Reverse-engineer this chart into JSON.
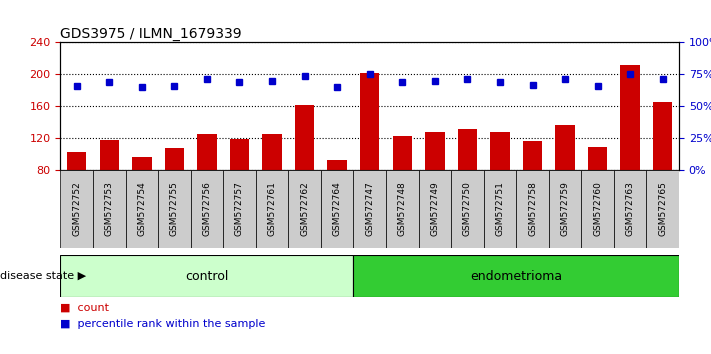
{
  "title": "GDS3975 / ILMN_1679339",
  "samples": [
    "GSM572752",
    "GSM572753",
    "GSM572754",
    "GSM572755",
    "GSM572756",
    "GSM572757",
    "GSM572761",
    "GSM572762",
    "GSM572764",
    "GSM572747",
    "GSM572748",
    "GSM572749",
    "GSM572750",
    "GSM572751",
    "GSM572758",
    "GSM572759",
    "GSM572760",
    "GSM572763",
    "GSM572765"
  ],
  "counts": [
    103,
    118,
    96,
    107,
    125,
    119,
    125,
    162,
    93,
    202,
    123,
    127,
    132,
    127,
    116,
    136,
    109,
    212,
    165
  ],
  "percentiles": [
    66,
    69,
    65,
    66,
    71,
    69,
    70,
    74,
    65,
    75,
    69,
    70,
    71,
    69,
    67,
    71,
    66,
    75,
    71
  ],
  "group_labels": [
    "control",
    "endometrioma"
  ],
  "group_sizes": [
    9,
    10
  ],
  "ylim_left": [
    80,
    240
  ],
  "ylim_right": [
    0,
    100
  ],
  "yticks_left": [
    80,
    120,
    160,
    200,
    240
  ],
  "yticks_right": [
    0,
    25,
    50,
    75,
    100
  ],
  "bar_color": "#cc0000",
  "dot_color": "#0000cc",
  "control_bg": "#ccffcc",
  "endometrioma_bg": "#33cc33",
  "label_bg": "#cccccc",
  "disease_state_label": "disease state",
  "legend_count_label": "count",
  "legend_pct_label": "percentile rank within the sample"
}
